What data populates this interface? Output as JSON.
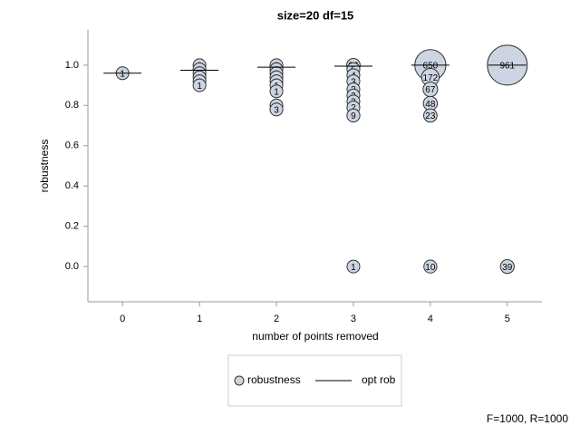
{
  "chart_data": {
    "type": "scatter",
    "title": "size=20 df=15",
    "xlabel": "number of points removed",
    "ylabel": "robustness",
    "annotation": "F=1000, R=1000",
    "xlim": [
      -0.45,
      5.45
    ],
    "ylim": [
      -0.175,
      1.175
    ],
    "xticks": [
      0,
      1,
      2,
      3,
      4,
      5
    ],
    "yticks": [
      {
        "value": 0,
        "label": "0.0"
      },
      0.2,
      0.4,
      0.6,
      0.8,
      {
        "value": 1,
        "label": "1.0"
      }
    ],
    "series": [
      {
        "name": "robustness",
        "color": "#cdd5e2",
        "x": [
          0,
          1,
          1,
          1,
          1,
          1,
          1,
          2,
          2,
          2,
          2,
          2,
          2,
          2,
          2,
          2,
          3,
          3,
          3,
          3,
          3,
          3,
          3,
          3,
          3,
          3,
          4,
          4,
          4,
          4,
          4,
          4,
          5,
          5
        ],
        "y": [
          0.96,
          1.0,
          0.98,
          0.96,
          0.94,
          0.92,
          0.9,
          1.0,
          0.98,
          0.96,
          0.94,
          0.92,
          0.9,
          0.87,
          0.8,
          0.78,
          1.0,
          0.98,
          0.95,
          0.92,
          0.88,
          0.85,
          0.82,
          0.79,
          0.75,
          0.0,
          1.0,
          0.94,
          0.88,
          0.81,
          0.75,
          0.0,
          1.0,
          0.0
        ],
        "sizes": [
          1,
          1,
          1,
          1,
          1,
          1,
          1,
          2,
          2,
          1,
          1,
          1,
          1,
          1,
          1,
          3,
          26,
          5,
          4,
          3,
          3,
          2,
          2,
          2,
          9,
          1,
          650,
          172,
          67,
          48,
          23,
          10,
          961,
          39
        ]
      },
      {
        "name": "opt rob",
        "color": "#000000",
        "x": [
          0,
          1,
          2,
          3,
          4,
          5
        ],
        "y": [
          0.96,
          0.975,
          0.99,
          0.995,
          1.0,
          1.0
        ]
      }
    ]
  }
}
